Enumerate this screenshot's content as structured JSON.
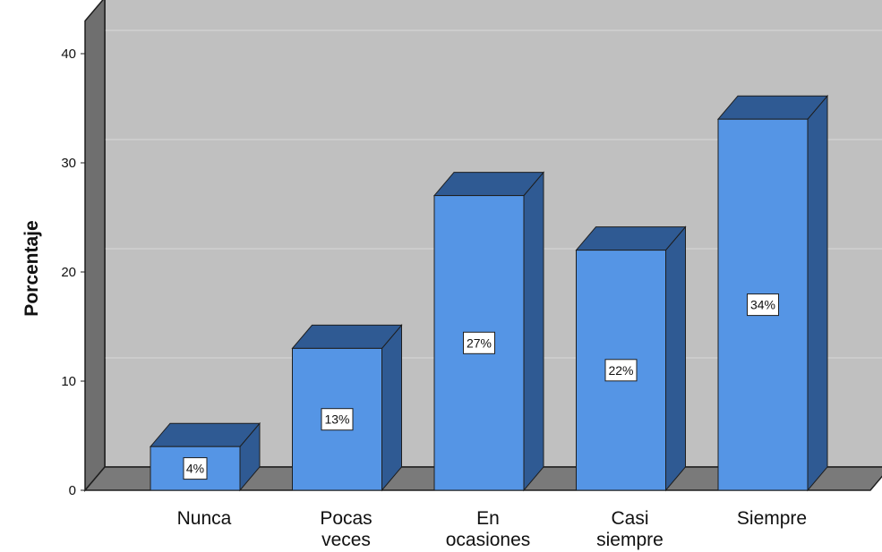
{
  "chart_data": {
    "type": "bar",
    "title": "",
    "xlabel": "",
    "ylabel": "Porcentaje",
    "categories": [
      {
        "lines": [
          "Nunca"
        ]
      },
      {
        "lines": [
          "Pocas",
          "veces"
        ]
      },
      {
        "lines": [
          "En",
          "ocasiones"
        ]
      },
      {
        "lines": [
          "Casi",
          "siempre"
        ]
      },
      {
        "lines": [
          "Siempre"
        ]
      }
    ],
    "values": [
      4,
      13,
      27,
      22,
      34
    ],
    "data_labels": [
      "4%",
      "13%",
      "27%",
      "22%",
      "34%"
    ],
    "ylim": [
      0,
      43
    ],
    "yticks": [
      0,
      10,
      20,
      30,
      40
    ],
    "grid": true,
    "legend": false,
    "three_d": true,
    "colors": {
      "bar_front": "#5595e5",
      "bar_dark": "#2f5a93",
      "bar_outline": "#1e1e1e",
      "plot_bg": "#c0c0c0",
      "wall_side": "#6f6f6f",
      "floor": "#7a7a7a",
      "gridline": "#d8d8d8",
      "label_box": "#ffffff"
    }
  }
}
